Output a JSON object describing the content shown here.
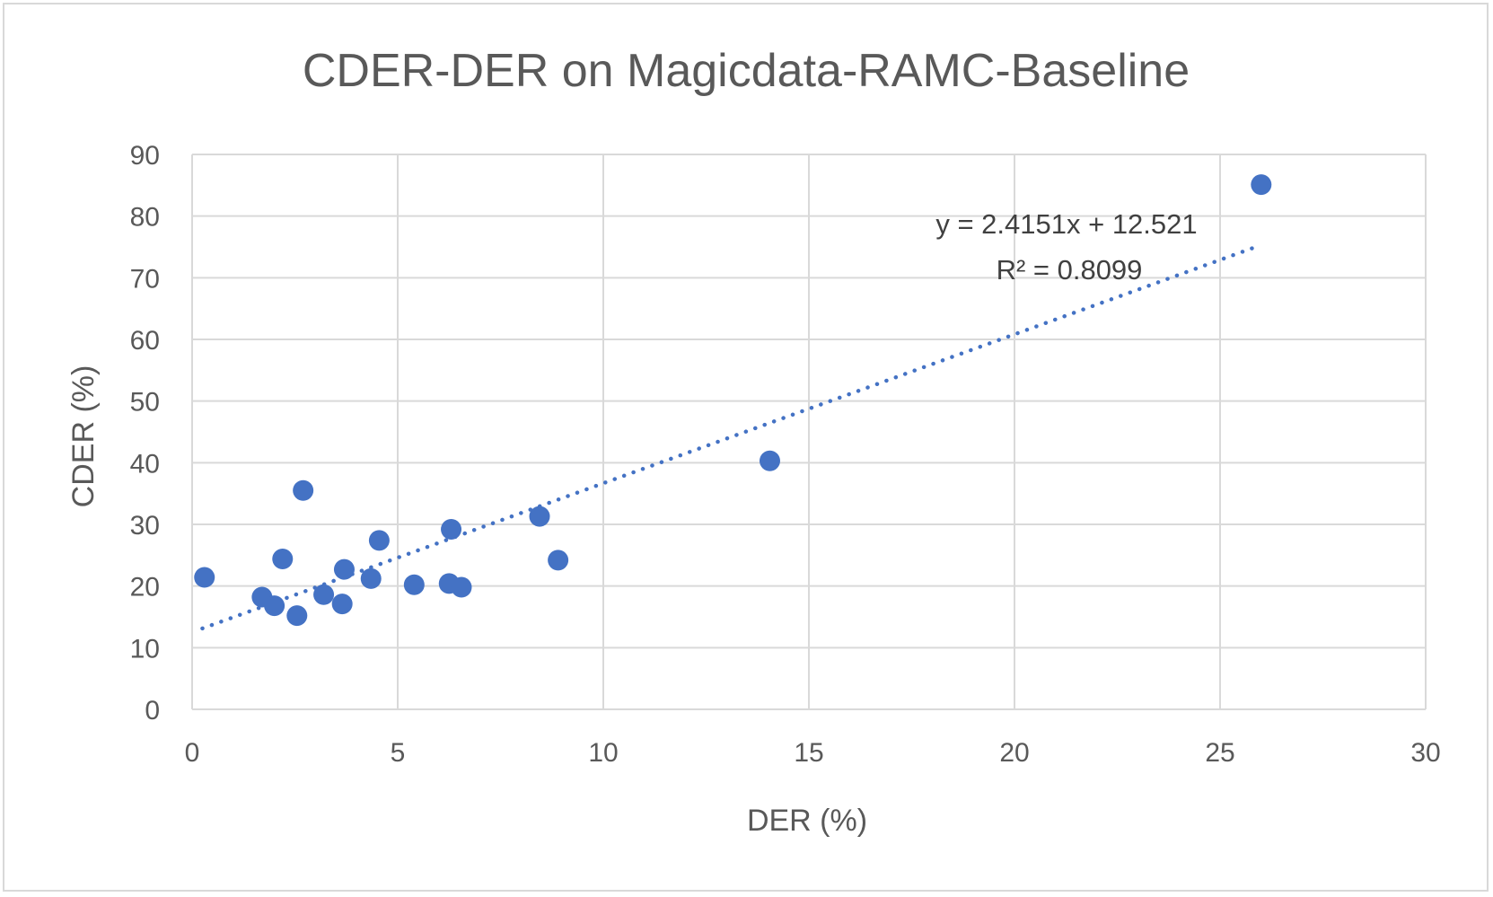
{
  "chart_data": {
    "type": "scatter",
    "title": "CDER-DER  on Magicdata-RAMC-Baseline",
    "xlabel": "DER (%)",
    "ylabel": "CDER (%)",
    "xlim": [
      0,
      30
    ],
    "ylim": [
      0,
      90
    ],
    "xticks": [
      0,
      5,
      10,
      15,
      20,
      25,
      30
    ],
    "yticks": [
      0,
      10,
      20,
      30,
      40,
      50,
      60,
      70,
      80,
      90
    ],
    "grid": true,
    "legend": "none",
    "marker_color": "#4472c4",
    "series": [
      {
        "points": [
          {
            "x": 0.3,
            "y": 21.4
          },
          {
            "x": 1.7,
            "y": 18.2
          },
          {
            "x": 2.0,
            "y": 16.8
          },
          {
            "x": 2.2,
            "y": 24.4
          },
          {
            "x": 2.55,
            "y": 15.2
          },
          {
            "x": 2.7,
            "y": 35.5
          },
          {
            "x": 3.2,
            "y": 18.6
          },
          {
            "x": 3.65,
            "y": 17.1
          },
          {
            "x": 3.7,
            "y": 22.7
          },
          {
            "x": 4.35,
            "y": 21.2
          },
          {
            "x": 4.55,
            "y": 27.4
          },
          {
            "x": 5.4,
            "y": 20.2
          },
          {
            "x": 6.25,
            "y": 20.4
          },
          {
            "x": 6.3,
            "y": 29.2
          },
          {
            "x": 6.55,
            "y": 19.8
          },
          {
            "x": 8.45,
            "y": 31.3
          },
          {
            "x": 8.9,
            "y": 24.2
          },
          {
            "x": 14.05,
            "y": 40.3
          },
          {
            "x": 26.0,
            "y": 85.1
          }
        ]
      }
    ],
    "trendline": {
      "type": "linear",
      "style": "dotted",
      "slope": 2.4151,
      "intercept": 12.521,
      "x_range": [
        0.25,
        25.8
      ],
      "equation": "y = 2.4151x + 12.521",
      "r_squared": "R² = 0.8099"
    }
  }
}
